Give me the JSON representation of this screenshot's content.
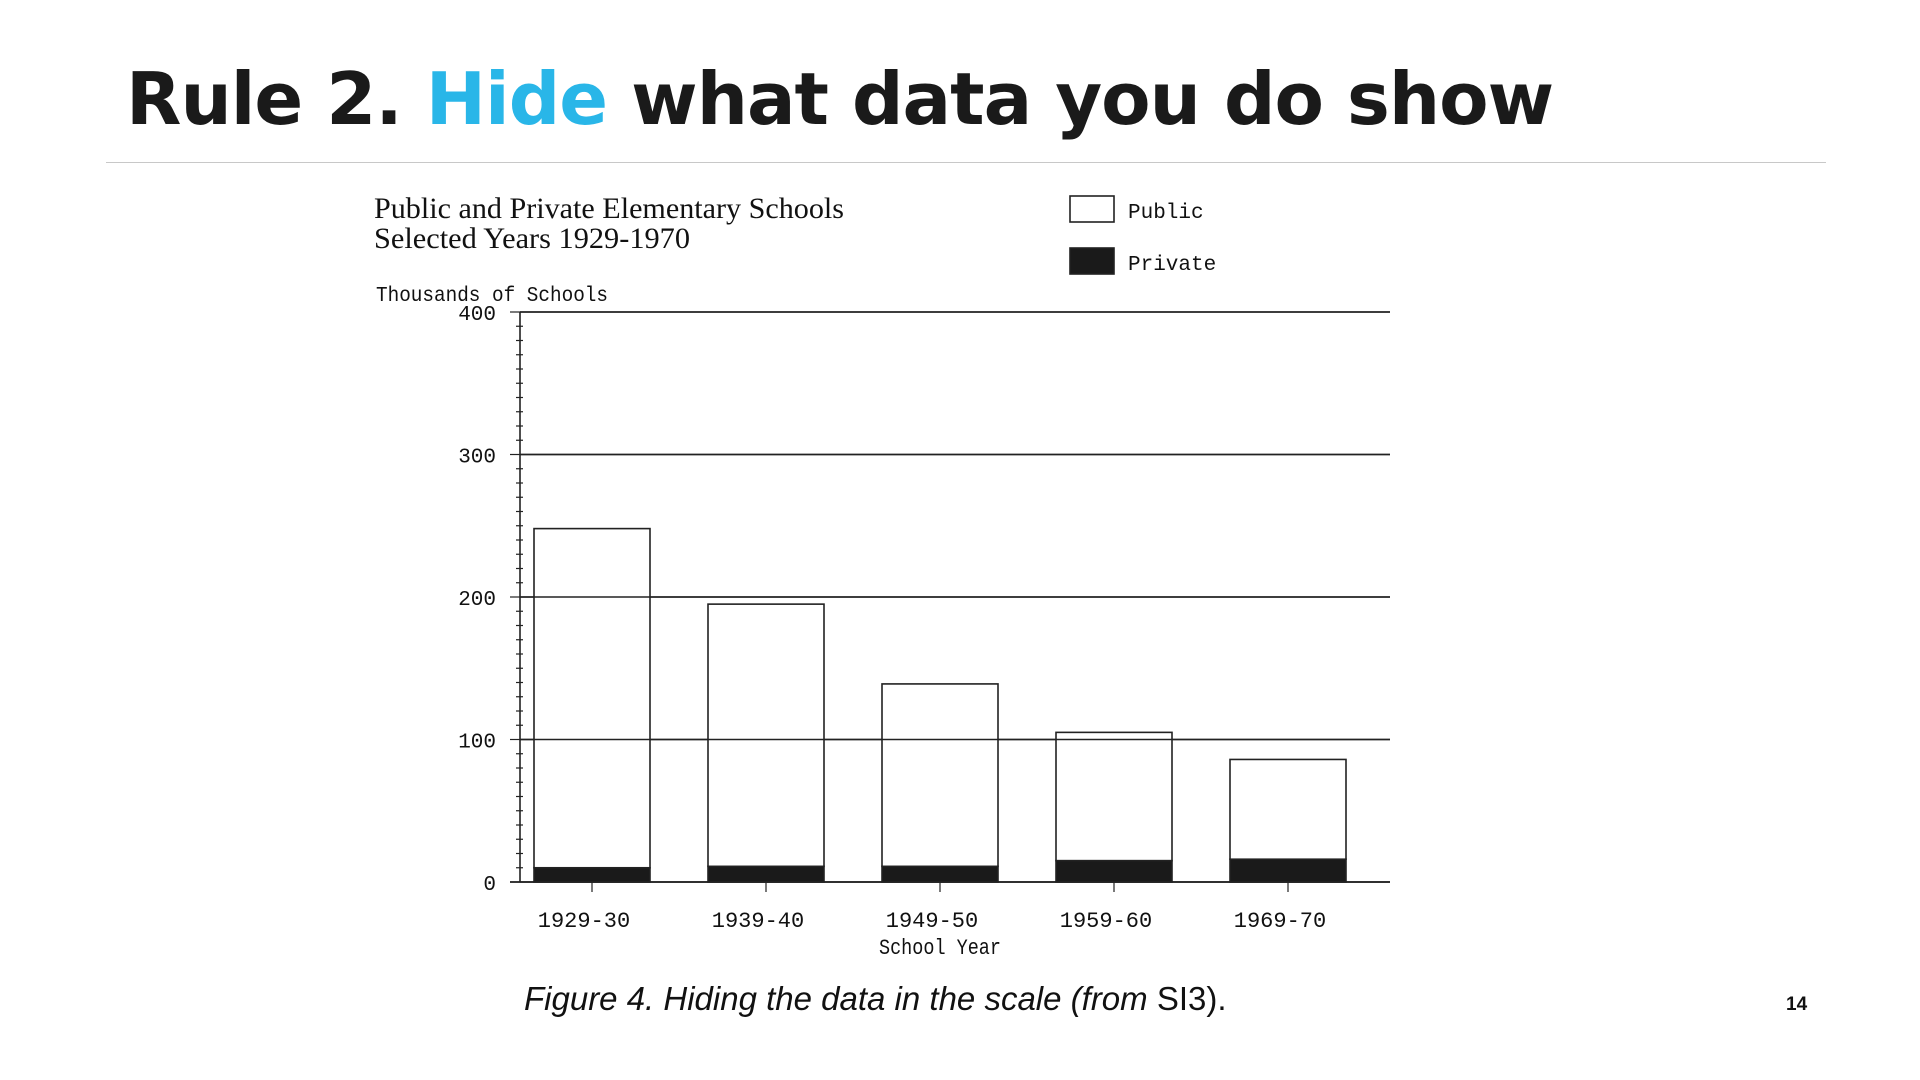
{
  "slide": {
    "title_prefix": "Rule 2. ",
    "title_accent": "Hide",
    "title_suffix": " what data you do show",
    "accent_color": "#29b6e8",
    "caption_prefix": "Figure 4. Hiding the data in the scale (from ",
    "caption_source": "SI3",
    "caption_suffix": ").",
    "page_number": "14"
  },
  "chart_data": {
    "type": "bar",
    "stacked": true,
    "title": "Public and Private Elementary Schools",
    "subtitle": "Selected Years 1929-1970",
    "ylabel": "Thousands of Schools",
    "xlabel": "School Year",
    "ylim": [
      0,
      400
    ],
    "yticks": [
      "0",
      "100",
      "200",
      "300",
      "400"
    ],
    "categories": [
      "1929-30",
      "1939-40",
      "1949-50",
      "1959-60",
      "1969-70"
    ],
    "series": [
      {
        "name": "Private",
        "color": "#1a1a1a",
        "values": [
          10,
          11,
          11,
          15,
          16
        ]
      },
      {
        "name": "Public",
        "color": "#ffffff",
        "values": [
          238,
          184,
          128,
          90,
          70
        ]
      }
    ],
    "legend": {
      "position": "top-right",
      "entries": [
        "Public",
        "Private"
      ]
    },
    "grid": true
  }
}
